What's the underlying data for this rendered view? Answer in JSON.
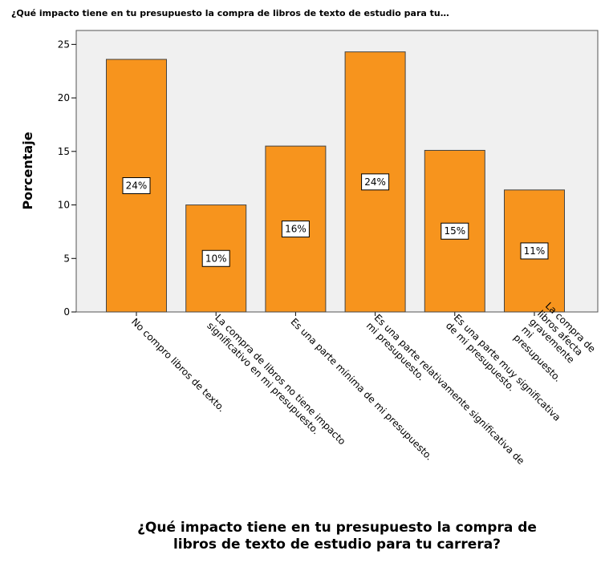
{
  "chart_data": {
    "type": "bar",
    "title": "¿Qué impacto tiene en tu presupuesto la compra de libros de texto de estudio para tu…",
    "y_label": "Porcentaje",
    "x_label": [
      "¿Qué impacto tiene en tu presupuesto la compra de",
      "libros de texto de estudio para tu carrera?"
    ],
    "categories": [
      [
        "No compro libros de texto."
      ],
      [
        "La compra de libros no tiene impacto",
        "significativo en mi presupuesto."
      ],
      [
        "Es una parte mínima de mi presupuesto."
      ],
      [
        "Es una parte relativamente significativa de",
        "mi presupuesto."
      ],
      [
        "Es una parte muy significativa",
        "de mi presupuesto."
      ],
      [
        "La compra de",
        "libros afecta",
        "gravemente",
        "mi",
        "presupuesto."
      ]
    ],
    "values": [
      23.6,
      10.0,
      15.5,
      24.3,
      15.1,
      11.4
    ],
    "value_labels": [
      "24%",
      "10%",
      "16%",
      "24%",
      "15%",
      "11%"
    ],
    "color": "#f7941d",
    "ylim": [
      0,
      26.3
    ],
    "yticks": [
      0,
      5,
      10,
      15,
      20,
      25
    ]
  }
}
